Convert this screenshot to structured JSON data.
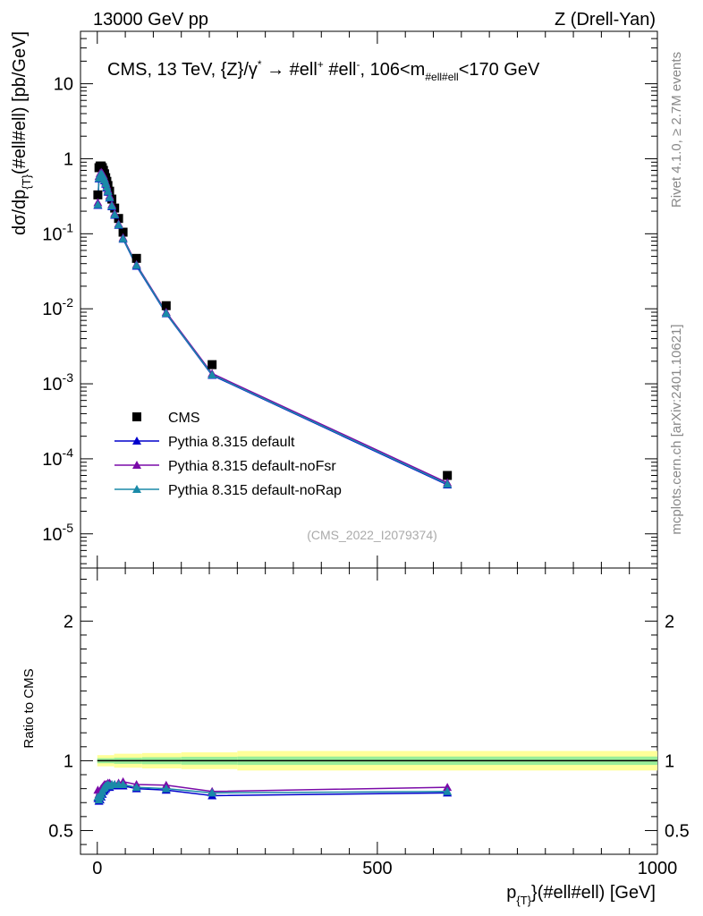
{
  "header": {
    "energy_label": "13000 GeV pp",
    "process_label": "Z (Drell-Yan)",
    "plot_title": "CMS, 13 TeV, {Z}/γ* → #ell+ #ell-, 106<m#ell#ell<170 GeV",
    "side_label_version": "Rivet 4.1.0, ≥ 2.7M events",
    "side_label_site": "mcplots.cern.ch [arXiv:2401.10621]",
    "analysis_id": "(CMS_2022_I2079374)"
  },
  "colors": {
    "data": "#000000",
    "default": "#0000cc",
    "noFsr": "#7a0aa8",
    "noRap": "#1a8aa8",
    "band_inner": "#99ee99",
    "band_outer": "#ffff99"
  },
  "chart_data": [
    {
      "type": "scatter",
      "panel": "main",
      "title": "CMS, 13 TeV, {Z}/γ* → #ell+ #ell-, 106<m#ell#ell<170 GeV",
      "xlabel": "p_{T}(#ell#ell) [GeV]",
      "ylabel": "dσ/dp_{T}(#ell#ell) [pb/GeV]",
      "yscale": "log",
      "xlim": [
        -30,
        1000
      ],
      "ylim": [
        3.5e-06,
        50
      ],
      "y_tick_labels": [
        "10^-5",
        "10^-4",
        "10^-3",
        "10^-2",
        "10^-1",
        "1",
        "10"
      ],
      "legend_position": "lower-left",
      "x": [
        1,
        3,
        5,
        7,
        9,
        11,
        13,
        15,
        17,
        19,
        22,
        26,
        31,
        38,
        46,
        70,
        123,
        205,
        625
      ],
      "series": [
        {
          "name": "CMS",
          "marker": "square",
          "values": [
            0.33,
            0.76,
            0.8,
            0.8,
            0.76,
            0.7,
            0.63,
            0.56,
            0.5,
            0.44,
            0.37,
            0.29,
            0.22,
            0.16,
            0.105,
            0.047,
            0.011,
            0.0018,
            6e-05
          ]
        },
        {
          "name": "Pythia 8.315 default",
          "marker": "triangle",
          "values": [
            0.24,
            0.54,
            0.6,
            0.62,
            0.6,
            0.56,
            0.51,
            0.46,
            0.41,
            0.36,
            0.3,
            0.23,
            0.177,
            0.13,
            0.085,
            0.037,
            0.0086,
            0.0013,
            4.5e-05
          ]
        },
        {
          "name": "Pythia 8.315 default-noFsr",
          "marker": "triangle",
          "values": [
            0.26,
            0.58,
            0.64,
            0.66,
            0.64,
            0.6,
            0.545,
            0.49,
            0.44,
            0.385,
            0.32,
            0.245,
            0.187,
            0.136,
            0.089,
            0.039,
            0.009,
            0.00137,
            4.8e-05
          ]
        },
        {
          "name": "Pythia 8.315 default-noRap",
          "marker": "triangle",
          "values": [
            0.245,
            0.55,
            0.61,
            0.63,
            0.61,
            0.57,
            0.52,
            0.47,
            0.42,
            0.368,
            0.305,
            0.235,
            0.18,
            0.132,
            0.086,
            0.038,
            0.0087,
            0.00132,
            4.6e-05
          ]
        }
      ]
    },
    {
      "type": "line",
      "panel": "ratio",
      "ylabel": "Ratio to CMS",
      "xlabel": "p_{T}(#ell#ell) [GeV]",
      "xlim": [
        -30,
        1000
      ],
      "ylim": [
        0.33,
        2.38
      ],
      "y_ticks": [
        0.5,
        1,
        2
      ],
      "y_tick_labels": [
        "0.5",
        "1",
        "2"
      ],
      "x_ticks": [
        0,
        500,
        1000
      ],
      "x_tick_labels": [
        "0",
        "500",
        "1000"
      ],
      "x": [
        1,
        3,
        5,
        7,
        9,
        11,
        13,
        15,
        17,
        19,
        22,
        26,
        31,
        38,
        46,
        70,
        123,
        205,
        625
      ],
      "reference_line": 1,
      "band_edges": [
        0,
        30,
        80,
        150,
        250,
        1000
      ],
      "band_inner_halfwidth": [
        0.018,
        0.022,
        0.025,
        0.028,
        0.03
      ],
      "band_outer_halfwidth": [
        0.04,
        0.05,
        0.055,
        0.06,
        0.07
      ],
      "series": [
        {
          "name": "Pythia 8.315 default",
          "values": [
            0.73,
            0.71,
            0.72,
            0.74,
            0.76,
            0.78,
            0.79,
            0.8,
            0.81,
            0.815,
            0.81,
            0.82,
            0.825,
            0.82,
            0.82,
            0.8,
            0.79,
            0.75,
            0.77
          ]
        },
        {
          "name": "Pythia 8.315 default-noFsr",
          "values": [
            0.79,
            0.76,
            0.78,
            0.8,
            0.81,
            0.82,
            0.83,
            0.83,
            0.83,
            0.84,
            0.84,
            0.83,
            0.83,
            0.84,
            0.85,
            0.83,
            0.825,
            0.78,
            0.81
          ]
        },
        {
          "name": "Pythia 8.315 default-noRap",
          "values": [
            0.74,
            0.72,
            0.74,
            0.76,
            0.78,
            0.8,
            0.81,
            0.82,
            0.82,
            0.83,
            0.82,
            0.83,
            0.83,
            0.83,
            0.83,
            0.81,
            0.8,
            0.77,
            0.78
          ]
        }
      ]
    }
  ]
}
